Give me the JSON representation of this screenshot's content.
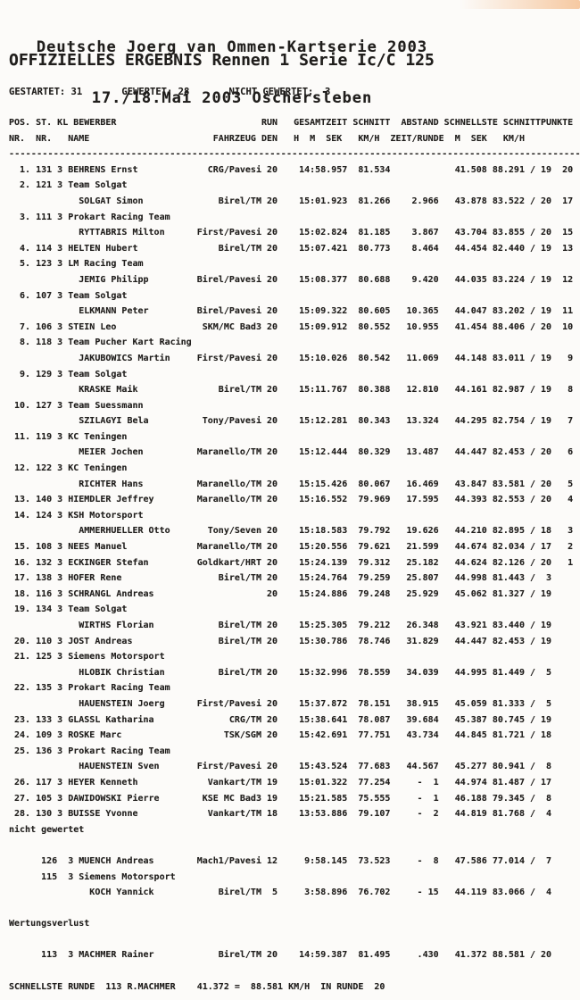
{
  "page": {
    "title_line1": "Deutsche Joerg van Ommen-Kartserie 2003",
    "title_line2": "17./18.Mai 2003 Oschersleben",
    "subtitle": "OFFIZIELLES ERGEBNIS Rennen 1 Serie Ic/C 125",
    "colors": {
      "paper": "#fcfbf9",
      "ink": "#201e1c",
      "scan_artifact": "#f1a05a"
    }
  },
  "stats": {
    "started_label": "GESTARTET:",
    "started": "31",
    "classified_label": "GEWERTET:",
    "classified": "28",
    "not_classified_label": "NICHT GEWERTET:",
    "not_classified": "3"
  },
  "table": {
    "header_row1": [
      "POS. ST. KL BEWERBER",
      "RUN",
      "GESAMTZEIT",
      "SCHNITT",
      "ABSTAND",
      "SCHNELLSTE",
      "SCHNITT",
      "PUNKTE"
    ],
    "header_row2": [
      "NR.  NR.   NAME",
      "FAHRZEUG",
      "DEN",
      "H  M  SEK",
      "KM/H",
      "ZEIT/RUNDE",
      "M  SEK",
      "KM/H"
    ],
    "rows": [
      {
        "pos": "1.",
        "nr": "131",
        "kl": "3",
        "team": "",
        "name": "BEHRENS Ernst",
        "vehicle": "CRG/Pavesi",
        "laps": "20",
        "total": "14:58.957",
        "avg": "81.534",
        "gap": "",
        "best": "41.508",
        "best_avg": "88.291 / 19",
        "pts": "20"
      },
      {
        "pos": "2.",
        "nr": "121",
        "kl": "3",
        "team": "Team Solgat",
        "name": "SOLGAT Simon",
        "vehicle": "Birel/TM",
        "laps": "20",
        "total": "15:01.923",
        "avg": "81.266",
        "gap": "2.966",
        "best": "43.878",
        "best_avg": "83.522 / 20",
        "pts": "17"
      },
      {
        "pos": "3.",
        "nr": "111",
        "kl": "3",
        "team": "Prokart Racing Team",
        "name": "RYTTABRIS Milton",
        "vehicle": "First/Pavesi",
        "laps": "20",
        "total": "15:02.824",
        "avg": "81.185",
        "gap": "3.867",
        "best": "43.704",
        "best_avg": "83.855 / 20",
        "pts": "15"
      },
      {
        "pos": "4.",
        "nr": "114",
        "kl": "3",
        "team": "",
        "name": "HELTEN Hubert",
        "vehicle": "Birel/TM",
        "laps": "20",
        "total": "15:07.421",
        "avg": "80.773",
        "gap": "8.464",
        "best": "44.454",
        "best_avg": "82.440 / 19",
        "pts": "13"
      },
      {
        "pos": "5.",
        "nr": "123",
        "kl": "3",
        "team": "LM Racing Team",
        "name": "JEMIG Philipp",
        "vehicle": "Birel/Pavesi",
        "laps": "20",
        "total": "15:08.377",
        "avg": "80.688",
        "gap": "9.420",
        "best": "44.035",
        "best_avg": "83.224 / 19",
        "pts": "12"
      },
      {
        "pos": "6.",
        "nr": "107",
        "kl": "3",
        "team": "Team Solgat",
        "name": "ELKMANN Peter",
        "vehicle": "Birel/Pavesi",
        "laps": "20",
        "total": "15:09.322",
        "avg": "80.605",
        "gap": "10.365",
        "best": "44.047",
        "best_avg": "83.202 / 19",
        "pts": "11"
      },
      {
        "pos": "7.",
        "nr": "106",
        "kl": "3",
        "team": "",
        "name": "STEIN Leo",
        "vehicle": "SKM/MC Bad3",
        "laps": "20",
        "total": "15:09.912",
        "avg": "80.552",
        "gap": "10.955",
        "best": "41.454",
        "best_avg": "88.406 / 20",
        "pts": "10"
      },
      {
        "pos": "8.",
        "nr": "118",
        "kl": "3",
        "team": "Team Pucher Kart Racing",
        "name": "JAKUBOWICS Martin",
        "vehicle": "First/Pavesi",
        "laps": "20",
        "total": "15:10.026",
        "avg": "80.542",
        "gap": "11.069",
        "best": "44.148",
        "best_avg": "83.011 / 19",
        "pts": "9"
      },
      {
        "pos": "9.",
        "nr": "129",
        "kl": "3",
        "team": "Team Solgat",
        "name": "KRASKE Maik",
        "vehicle": "Birel/TM",
        "laps": "20",
        "total": "15:11.767",
        "avg": "80.388",
        "gap": "12.810",
        "best": "44.161",
        "best_avg": "82.987 / 19",
        "pts": "8"
      },
      {
        "pos": "10.",
        "nr": "127",
        "kl": "3",
        "team": "Team Suessmann",
        "name": "SZILAGYI Bela",
        "vehicle": "Tony/Pavesi",
        "laps": "20",
        "total": "15:12.281",
        "avg": "80.343",
        "gap": "13.324",
        "best": "44.295",
        "best_avg": "82.754 / 19",
        "pts": "7"
      },
      {
        "pos": "11.",
        "nr": "119",
        "kl": "3",
        "team": "KC Teningen",
        "name": "MEIER Jochen",
        "vehicle": "Maranello/TM",
        "laps": "20",
        "total": "15:12.444",
        "avg": "80.329",
        "gap": "13.487",
        "best": "44.447",
        "best_avg": "82.453 / 20",
        "pts": "6"
      },
      {
        "pos": "12.",
        "nr": "122",
        "kl": "3",
        "team": "KC Teningen",
        "name": "RICHTER Hans",
        "vehicle": "Maranello/TM",
        "laps": "20",
        "total": "15:15.426",
        "avg": "80.067",
        "gap": "16.469",
        "best": "43.847",
        "best_avg": "83.581 / 20",
        "pts": "5"
      },
      {
        "pos": "13.",
        "nr": "140",
        "kl": "3",
        "team": "",
        "name": "HIEMDLER Jeffrey",
        "vehicle": "Maranello/TM",
        "laps": "20",
        "total": "15:16.552",
        "avg": "79.969",
        "gap": "17.595",
        "best": "44.393",
        "best_avg": "82.553 / 20",
        "pts": "4"
      },
      {
        "pos": "14.",
        "nr": "124",
        "kl": "3",
        "team": "KSH Motorsport",
        "name": "AMMERHUELLER Otto",
        "vehicle": "Tony/Seven",
        "laps": "20",
        "total": "15:18.583",
        "avg": "79.792",
        "gap": "19.626",
        "best": "44.210",
        "best_avg": "82.895 / 18",
        "pts": "3"
      },
      {
        "pos": "15.",
        "nr": "108",
        "kl": "3",
        "team": "",
        "name": "NEES Manuel",
        "vehicle": "Maranello/TM",
        "laps": "20",
        "total": "15:20.556",
        "avg": "79.621",
        "gap": "21.599",
        "best": "44.674",
        "best_avg": "82.034 / 17",
        "pts": "2"
      },
      {
        "pos": "16.",
        "nr": "132",
        "kl": "3",
        "team": "",
        "name": "ECKINGER Stefan",
        "vehicle": "Goldkart/HRT",
        "laps": "20",
        "total": "15:24.139",
        "avg": "79.312",
        "gap": "25.182",
        "best": "44.624",
        "best_avg": "82.126 / 20",
        "pts": "1"
      },
      {
        "pos": "17.",
        "nr": "138",
        "kl": "3",
        "team": "",
        "name": "HOFER Rene",
        "vehicle": "Birel/TM",
        "laps": "20",
        "total": "15:24.764",
        "avg": "79.259",
        "gap": "25.807",
        "best": "44.998",
        "best_avg": "81.443 /  3",
        "pts": ""
      },
      {
        "pos": "18.",
        "nr": "116",
        "kl": "3",
        "team": "",
        "name": "SCHRANGL Andreas",
        "vehicle": "",
        "laps": "20",
        "total": "15:24.886",
        "avg": "79.248",
        "gap": "25.929",
        "best": "45.062",
        "best_avg": "81.327 / 19",
        "pts": ""
      },
      {
        "pos": "19.",
        "nr": "134",
        "kl": "3",
        "team": "Team Solgat",
        "name": "WIRTHS Florian",
        "vehicle": "Birel/TM",
        "laps": "20",
        "total": "15:25.305",
        "avg": "79.212",
        "gap": "26.348",
        "best": "43.921",
        "best_avg": "83.440 / 19",
        "pts": ""
      },
      {
        "pos": "20.",
        "nr": "110",
        "kl": "3",
        "team": "",
        "name": "JOST Andreas",
        "vehicle": "Birel/TM",
        "laps": "20",
        "total": "15:30.786",
        "avg": "78.746",
        "gap": "31.829",
        "best": "44.447",
        "best_avg": "82.453 / 19",
        "pts": ""
      },
      {
        "pos": "21.",
        "nr": "125",
        "kl": "3",
        "team": "Siemens Motorsport",
        "name": "HLOBIK Christian",
        "vehicle": "Birel/TM",
        "laps": "20",
        "total": "15:32.996",
        "avg": "78.559",
        "gap": "34.039",
        "best": "44.995",
        "best_avg": "81.449 /  5",
        "pts": ""
      },
      {
        "pos": "22.",
        "nr": "135",
        "kl": "3",
        "team": "Prokart Racing Team",
        "name": "HAUENSTEIN Joerg",
        "vehicle": "First/Pavesi",
        "laps": "20",
        "total": "15:37.872",
        "avg": "78.151",
        "gap": "38.915",
        "best": "45.059",
        "best_avg": "81.333 /  5",
        "pts": ""
      },
      {
        "pos": "23.",
        "nr": "133",
        "kl": "3",
        "team": "",
        "name": "GLASSL Katharina",
        "vehicle": "CRG/TM",
        "laps": "20",
        "total": "15:38.641",
        "avg": "78.087",
        "gap": "39.684",
        "best": "45.387",
        "best_avg": "80.745 / 19",
        "pts": ""
      },
      {
        "pos": "24.",
        "nr": "109",
        "kl": "3",
        "team": "",
        "name": "ROSKE Marc",
        "vehicle": "TSK/SGM",
        "laps": "20",
        "total": "15:42.691",
        "avg": "77.751",
        "gap": "43.734",
        "best": "44.845",
        "best_avg": "81.721 / 18",
        "pts": ""
      },
      {
        "pos": "25.",
        "nr": "136",
        "kl": "3",
        "team": "Prokart Racing Team",
        "name": "HAUENSTEIN Sven",
        "vehicle": "First/Pavesi",
        "laps": "20",
        "total": "15:43.524",
        "avg": "77.683",
        "gap": "44.567",
        "best": "45.277",
        "best_avg": "80.941 /  8",
        "pts": ""
      },
      {
        "pos": "26.",
        "nr": "117",
        "kl": "3",
        "team": "",
        "name": "HEYER Kenneth",
        "vehicle": "Vankart/TM",
        "laps": "19",
        "total": "15:01.322",
        "avg": "77.254",
        "gap": "-  1",
        "best": "44.974",
        "best_avg": "81.487 / 17",
        "pts": ""
      },
      {
        "pos": "27.",
        "nr": "105",
        "kl": "3",
        "team": "",
        "name": "DAWIDOWSKI Pierre",
        "vehicle": "KSE MC Bad3",
        "laps": "19",
        "total": "15:21.585",
        "avg": "75.555",
        "gap": "-  1",
        "best": "46.188",
        "best_avg": "79.345 /  8",
        "pts": ""
      },
      {
        "pos": "28.",
        "nr": "130",
        "kl": "3",
        "team": "",
        "name": "BUISSE Yvonne",
        "vehicle": "Vankart/TM",
        "laps": "18",
        "total": "13:53.886",
        "avg": "79.107",
        "gap": "-  2",
        "best": "44.819",
        "best_avg": "81.768 /  4",
        "pts": ""
      }
    ],
    "not_classified_section": {
      "label": "nicht gewertet",
      "rows": [
        {
          "nr": "126",
          "kl": "3",
          "team": "",
          "name": "MUENCH Andreas",
          "vehicle": "Mach1/Pavesi",
          "laps": "12",
          "total": "9:58.145",
          "avg": "73.523",
          "gap": "-  8",
          "best": "47.586",
          "best_avg": "77.014 /  7",
          "pts": ""
        },
        {
          "nr": "115",
          "kl": "3",
          "team": "Siemens Motorsport",
          "name": "KOCH Yannick",
          "vehicle": "Birel/TM",
          "laps": "5",
          "total": "3:58.896",
          "avg": "76.702",
          "gap": "- 15",
          "best": "44.119",
          "best_avg": "83.066 /  4",
          "pts": ""
        }
      ]
    },
    "penalty_section": {
      "label": "Wertungsverlust",
      "rows": [
        {
          "nr": "113",
          "kl": "3",
          "team": "",
          "name": "MACHMER Rainer",
          "vehicle": "Birel/TM",
          "laps": "20",
          "total": "14:59.387",
          "avg": "81.495",
          "gap": ".430",
          "best": "41.372",
          "best_avg": "88.581 / 20",
          "pts": ""
        }
      ]
    },
    "fastest_lap": {
      "label": "SCHNELLSTE RUNDE",
      "nr": "113",
      "driver": "R.MACHMER",
      "time": "41.372",
      "speed": "88.581 KM/H",
      "in_lap_label": "IN RUNDE",
      "lap": "20"
    }
  }
}
